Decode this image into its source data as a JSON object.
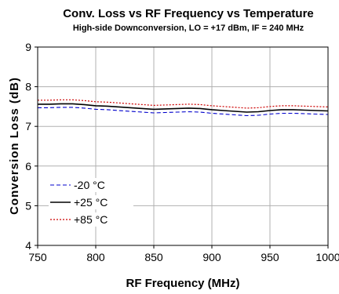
{
  "chart_data": {
    "type": "line",
    "title": "Conv. Loss vs RF Frequency vs Temperature",
    "subtitle": "High-side Downconversion, LO = +17 dBm, IF = 240 MHz",
    "xlabel": "RF Frequency (MHz)",
    "ylabel": "Conversion Loss (dB)",
    "xlim": [
      750,
      1000
    ],
    "ylim": [
      4,
      9
    ],
    "xticks": [
      750,
      800,
      850,
      900,
      950,
      1000
    ],
    "yticks": [
      4,
      5,
      6,
      7,
      8,
      9
    ],
    "grid": true,
    "legend_position": "bottom-left",
    "x": [
      750,
      760,
      770,
      780,
      790,
      800,
      810,
      820,
      830,
      840,
      850,
      860,
      870,
      880,
      890,
      900,
      910,
      920,
      930,
      940,
      950,
      960,
      970,
      980,
      990,
      1000
    ],
    "series": [
      {
        "name": "-20 °C",
        "color": "#0000cc",
        "dash": "dashed",
        "values": [
          7.47,
          7.47,
          7.48,
          7.48,
          7.46,
          7.43,
          7.42,
          7.4,
          7.38,
          7.36,
          7.34,
          7.35,
          7.36,
          7.37,
          7.36,
          7.33,
          7.31,
          7.29,
          7.27,
          7.28,
          7.31,
          7.33,
          7.33,
          7.32,
          7.31,
          7.3
        ]
      },
      {
        "name": "+25 °C",
        "color": "#000000",
        "dash": "solid",
        "values": [
          7.56,
          7.56,
          7.57,
          7.57,
          7.55,
          7.52,
          7.51,
          7.49,
          7.47,
          7.45,
          7.43,
          7.44,
          7.45,
          7.46,
          7.45,
          7.42,
          7.4,
          7.38,
          7.36,
          7.37,
          7.4,
          7.42,
          7.42,
          7.41,
          7.4,
          7.39
        ]
      },
      {
        "name": "+85 °C",
        "color": "#cc0000",
        "dash": "dotted",
        "values": [
          7.66,
          7.66,
          7.67,
          7.67,
          7.65,
          7.62,
          7.61,
          7.59,
          7.57,
          7.55,
          7.53,
          7.54,
          7.55,
          7.56,
          7.55,
          7.52,
          7.5,
          7.48,
          7.46,
          7.47,
          7.5,
          7.52,
          7.52,
          7.51,
          7.5,
          7.49
        ]
      }
    ]
  }
}
